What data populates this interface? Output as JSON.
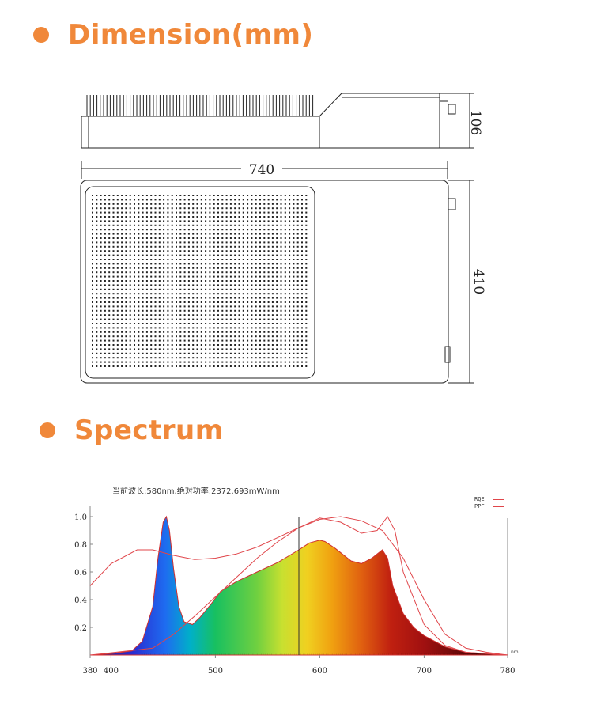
{
  "sections": {
    "dimension_title": "Dimension(mm)",
    "spectrum_title": "Spectrum"
  },
  "dimensions": {
    "width": "740",
    "height_side": "106",
    "depth": "410"
  },
  "spectrum": {
    "header": "当前波长:580nm,绝对功率:2372.693mW/nm",
    "legend": [
      "RQE",
      "PPF"
    ],
    "x_ticks": [
      "380",
      "400",
      "500",
      "600",
      "700",
      "780"
    ],
    "y_ticks": [
      "1.0",
      "0.8",
      "0.6",
      "0.4",
      "0.2"
    ],
    "unit_label": "nm"
  },
  "chart_data": {
    "type": "area",
    "x_label": "",
    "y_label": "",
    "xlim": [
      380,
      780
    ],
    "ylim": [
      0,
      1.0
    ],
    "cursor_wavelength": 580,
    "series": [
      {
        "x": [
          380,
          400,
          420,
          430,
          440,
          445,
          450,
          453,
          456,
          460,
          465,
          470,
          478,
          485,
          495,
          505,
          520,
          540,
          560,
          580,
          590,
          600,
          605,
          615,
          630,
          640,
          650,
          655,
          660,
          665,
          670,
          680,
          690,
          700,
          720,
          740,
          760,
          780
        ],
        "values": [
          0,
          0.01,
          0.03,
          0.1,
          0.35,
          0.7,
          0.96,
          1.0,
          0.9,
          0.62,
          0.35,
          0.24,
          0.22,
          0.27,
          0.36,
          0.46,
          0.53,
          0.6,
          0.67,
          0.76,
          0.81,
          0.83,
          0.82,
          0.77,
          0.68,
          0.66,
          0.7,
          0.73,
          0.76,
          0.7,
          0.5,
          0.3,
          0.2,
          0.14,
          0.06,
          0.02,
          0.01,
          0.0
        ]
      },
      {
        "name": "RQE",
        "x": [
          380,
          400,
          425,
          440,
          460,
          480,
          500,
          520,
          540,
          560,
          580,
          600,
          620,
          640,
          660,
          680,
          700,
          720,
          740,
          760,
          780
        ],
        "values": [
          0.5,
          0.66,
          0.76,
          0.76,
          0.72,
          0.69,
          0.7,
          0.73,
          0.78,
          0.85,
          0.92,
          0.98,
          1.0,
          0.97,
          0.9,
          0.7,
          0.4,
          0.15,
          0.05,
          0.02,
          0.0
        ]
      },
      {
        "name": "PPF",
        "x": [
          380,
          440,
          460,
          480,
          500,
          520,
          540,
          560,
          580,
          600,
          620,
          640,
          655,
          665,
          672,
          680,
          700,
          720,
          740,
          780
        ],
        "values": [
          0,
          0.05,
          0.15,
          0.28,
          0.42,
          0.56,
          0.7,
          0.82,
          0.92,
          0.99,
          0.96,
          0.88,
          0.9,
          1.0,
          0.9,
          0.6,
          0.22,
          0.07,
          0.02,
          0.0
        ]
      }
    ]
  }
}
